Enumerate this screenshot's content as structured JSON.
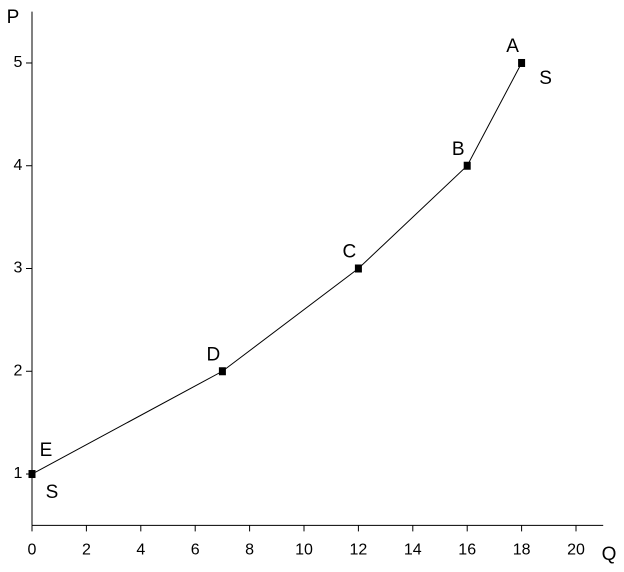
{
  "chart_data": {
    "type": "line",
    "x_label": "Q",
    "y_label": "P",
    "x": [
      0,
      7,
      12,
      16,
      18
    ],
    "series": [
      {
        "color": "#000000",
        "values": [
          1,
          2,
          3,
          4,
          5
        ],
        "point_labels": [
          "E",
          "D",
          "C",
          "B",
          "A"
        ]
      }
    ],
    "curve_labels": [
      "S",
      "S"
    ],
    "xlim": [
      0,
      21
    ],
    "xticks": [
      0,
      2,
      4,
      6,
      8,
      10,
      12,
      14,
      16,
      18,
      20
    ],
    "ylim": [
      0.5,
      5.5
    ],
    "yticks": [
      1,
      2,
      3,
      4,
      5
    ],
    "grid": false
  }
}
